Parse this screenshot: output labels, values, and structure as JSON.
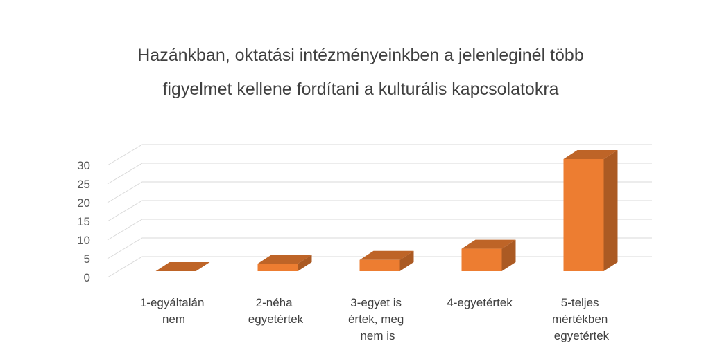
{
  "chart_data": {
    "type": "bar3d",
    "title": [
      "Hazánkban, oktatási intézményeinkben a jelenleginél több",
      "figyelmet kellene fordítani a kulturális kapcsolatokra"
    ],
    "categories": [
      "1-egyáltalán nem",
      "2-néha egyetértek",
      "3-egyet is értek, meg nem is",
      "4-egyetértek",
      "5-teljes mértékben egyetértek"
    ],
    "values": [
      0,
      2,
      3,
      6,
      30
    ],
    "color": "#ed7d31",
    "ylim": [
      0,
      30
    ],
    "yticks": [
      0,
      5,
      10,
      15,
      20,
      25,
      30
    ],
    "grid": true
  }
}
